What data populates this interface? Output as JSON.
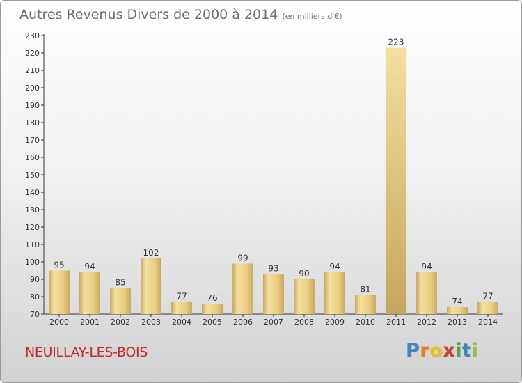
{
  "header": {
    "title": "Autres Revenus Divers de 2000 à 2014",
    "unit": "(en milliers d'€)"
  },
  "footer": {
    "commune": "NEUILLAY-LES-BOIS",
    "logo_letters": [
      "P",
      "r",
      "o",
      "x",
      "i",
      "t",
      "i"
    ],
    "logo_colors": [
      "#3a86c8",
      "#f07d18",
      "#e8c21c",
      "#d63a2a",
      "#4aa84a",
      "#3a86c8",
      "#8bc34a"
    ]
  },
  "colors": {
    "bar": "#e9cc7f",
    "bar_highlight": "#f4df9f",
    "bar_shadow": "#c8a860",
    "axis": "#333333",
    "grid_tick": "#333333",
    "title": "#6e6e6e",
    "commune": "#c02c28"
  },
  "chart_data": {
    "type": "bar",
    "title": "Autres Revenus Divers de 2000 à 2014",
    "subtitle": "(en milliers d'€)",
    "xlabel": "",
    "ylabel": "",
    "categories": [
      "2000",
      "2001",
      "2002",
      "2003",
      "2004",
      "2005",
      "2006",
      "2007",
      "2008",
      "2009",
      "2010",
      "2011",
      "2012",
      "2013",
      "2014"
    ],
    "values": [
      95,
      94,
      85,
      102,
      77,
      76,
      99,
      93,
      90,
      94,
      81,
      223,
      94,
      74,
      77
    ],
    "ylim": [
      70,
      230
    ],
    "yticks": [
      70,
      80,
      90,
      100,
      110,
      120,
      130,
      140,
      150,
      160,
      170,
      180,
      190,
      200,
      210,
      220,
      230
    ],
    "grid": false,
    "legend": "none"
  }
}
